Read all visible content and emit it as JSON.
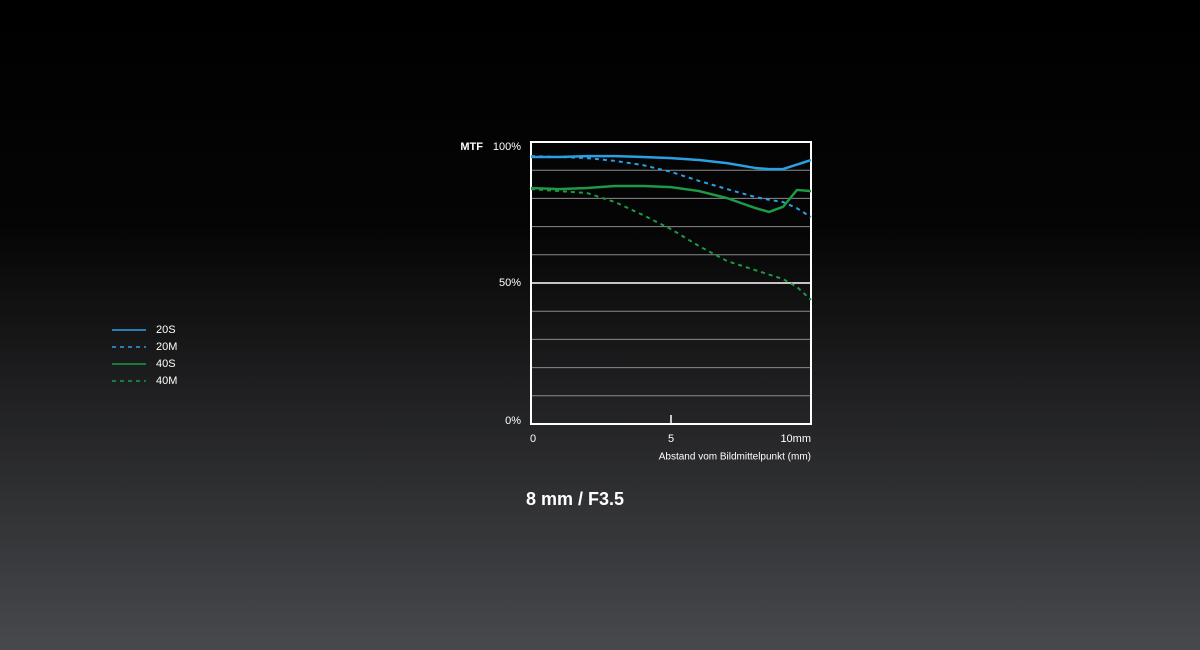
{
  "chart_data": {
    "type": "line",
    "title": "8 mm / F3.5",
    "ylabel": "MTF",
    "xlabel": "Abstand vom Bildmittelpunkt  (mm)",
    "x": [
      0,
      1,
      2,
      3,
      4,
      5,
      6,
      7,
      8,
      8.5,
      9,
      9.5,
      10
    ],
    "series": [
      {
        "name": "20S",
        "color": "#2b9fe3",
        "dash": false,
        "values": [
          94.7,
          94.7,
          95,
          95,
          94.7,
          94.3,
          93.6,
          92.5,
          90.8,
          90.4,
          90.4,
          92,
          93.6
        ]
      },
      {
        "name": "20M",
        "color": "#2b9fe3",
        "dash": true,
        "values": [
          95,
          94.7,
          94.3,
          93.3,
          91.8,
          89.4,
          86.2,
          83.3,
          80.5,
          79.5,
          78.7,
          76.5,
          73.4
        ]
      },
      {
        "name": "40S",
        "color": "#1c9a45",
        "dash": false,
        "values": [
          83.7,
          83.3,
          83.7,
          84.4,
          84.4,
          84,
          82.6,
          80.1,
          76.6,
          75.2,
          77,
          83,
          82.6
        ]
      },
      {
        "name": "40M",
        "color": "#1c9a45",
        "dash": true,
        "values": [
          83.3,
          82.6,
          81.9,
          78.7,
          74.1,
          69.1,
          63.1,
          57.8,
          54.6,
          53,
          51.4,
          48.6,
          44
        ]
      }
    ],
    "xlim": [
      0,
      10
    ],
    "xticks": [
      0,
      5,
      {
        "value": 10,
        "label": "10mm"
      }
    ],
    "ylim": [
      0,
      100
    ],
    "yticks": [
      {
        "value": 0,
        "label": "0%"
      },
      {
        "value": 50,
        "label": "50%"
      },
      {
        "value": 100,
        "label": "100%"
      }
    ],
    "ygrid": [
      10,
      20,
      30,
      40,
      60,
      70,
      80,
      90
    ]
  }
}
